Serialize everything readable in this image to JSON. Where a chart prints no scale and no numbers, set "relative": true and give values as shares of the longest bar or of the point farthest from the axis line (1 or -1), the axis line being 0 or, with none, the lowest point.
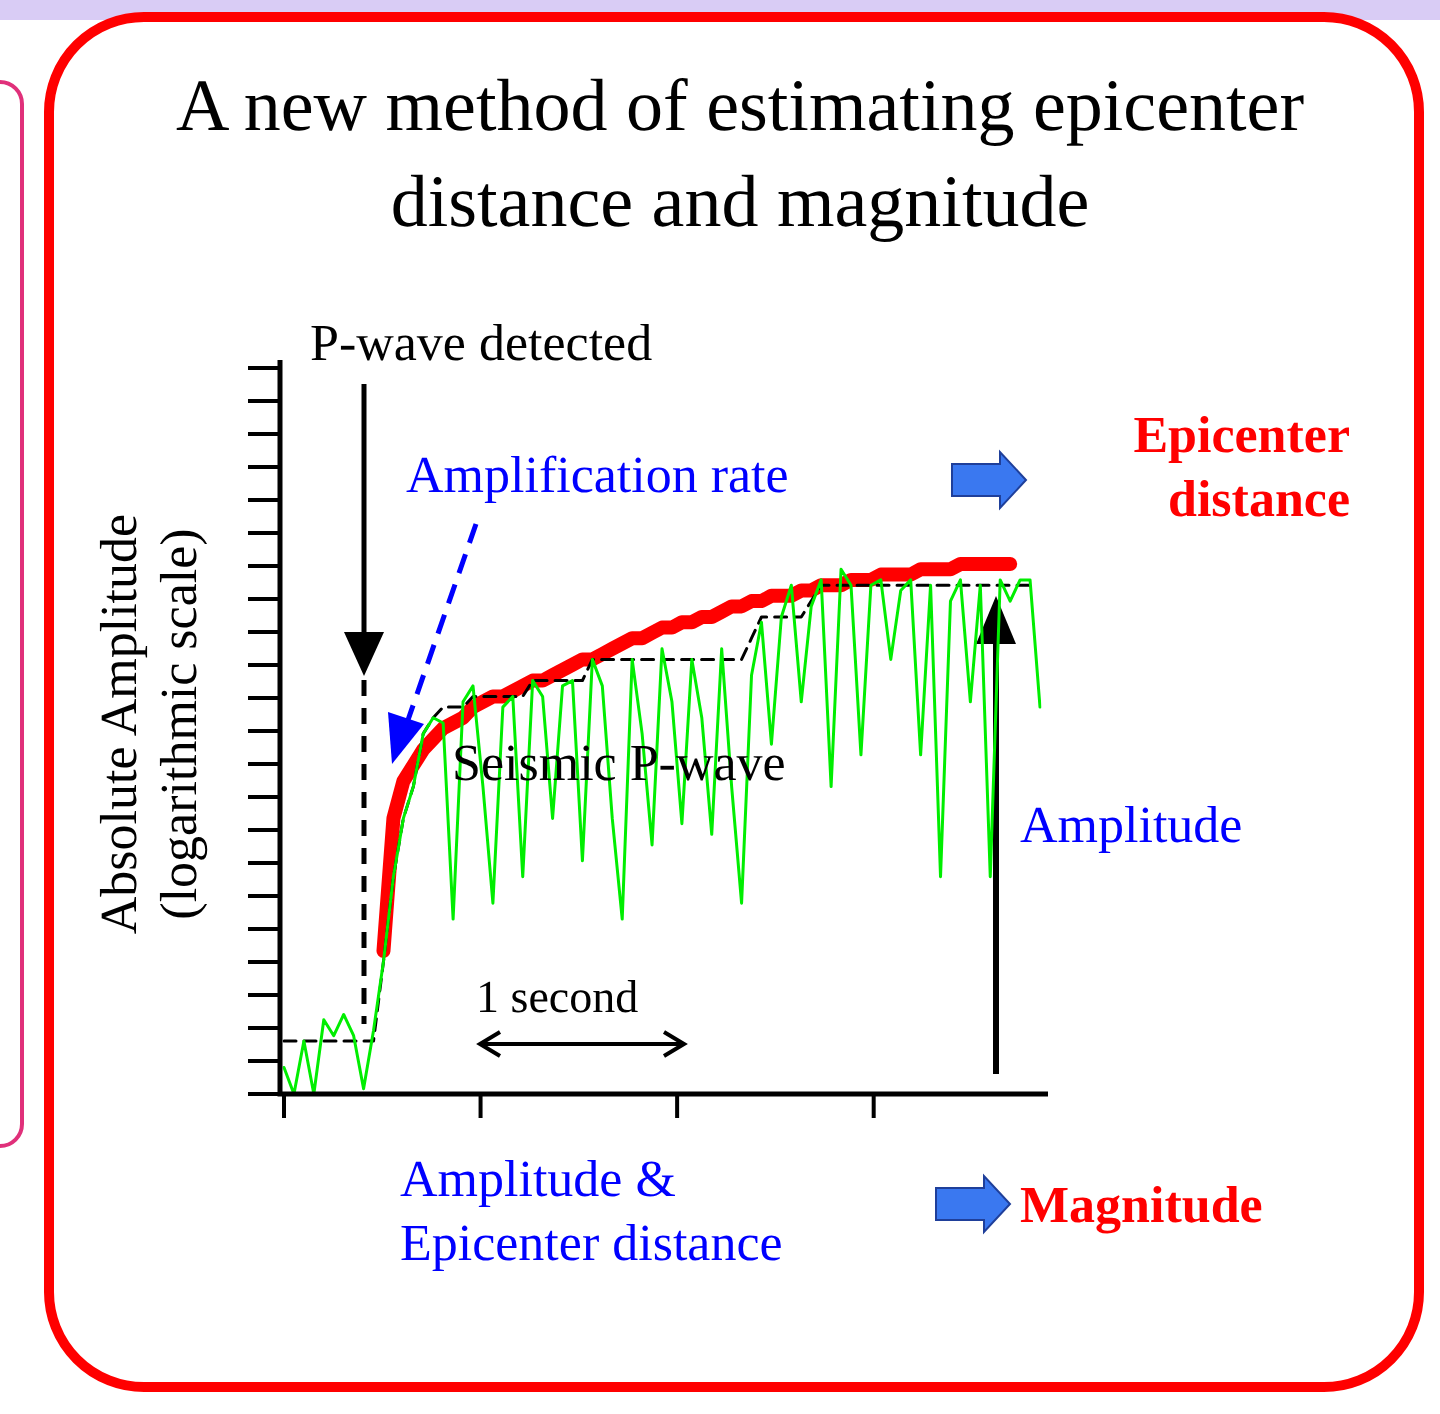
{
  "chart_data": {
    "type": "line",
    "relative": true,
    "title": "A new method of estimating epicenter distance and magnitude",
    "ylabel": "Absolute Amplitude (logarithmic scale)",
    "legend": false,
    "marker": "none",
    "categories": [
      null,
      null,
      null,
      null,
      null,
      null,
      null,
      null,
      null,
      null,
      null,
      null,
      null,
      null,
      null,
      null,
      null,
      null,
      null,
      null,
      null,
      null,
      null,
      null,
      null,
      null,
      null,
      null,
      null,
      null,
      null,
      null,
      null,
      null,
      null,
      null,
      null,
      null,
      null,
      null,
      null,
      null,
      null,
      null,
      null,
      null,
      null,
      null,
      null,
      null,
      null,
      null,
      null,
      null,
      null,
      null,
      null,
      null,
      null,
      null,
      null,
      null,
      null,
      null,
      null,
      null,
      null,
      null,
      null,
      null,
      null,
      null,
      null,
      null,
      null,
      null,
      null
    ],
    "series": [
      {
        "color": "#00ee00",
        "line_style": "solid",
        "values": [
          0.05,
          0,
          0.1,
          0,
          0.14,
          0.11,
          0.15,
          0.11,
          0.01,
          0.12,
          0.25,
          0.41,
          0.52,
          0.58,
          0.68,
          0.71,
          0.7,
          0.33,
          0.74,
          0.77,
          0.58,
          0.36,
          0.73,
          0.75,
          0.41,
          0.78,
          0.75,
          0.52,
          0.77,
          0.78,
          0.44,
          0.82,
          0.77,
          0.52,
          0.33,
          0.82,
          0.68,
          0.47,
          0.84,
          0.74,
          0.51,
          0.82,
          0.71,
          0.49,
          0.84,
          0.58,
          0.36,
          0.79,
          0.89,
          0.66,
          0.9,
          0.96,
          0.74,
          0.92,
          0.97,
          0.58,
          0.99,
          0.96,
          0.64,
          0.96,
          0.97,
          0.82,
          0.95,
          0.97,
          0.64,
          0.96,
          0.41,
          0.93,
          0.97,
          0.74,
          0.96,
          0.41,
          0.97,
          0.93,
          0.97,
          0.97,
          0.73
        ]
      },
      {
        "color": "#000000",
        "line_style": "dashed",
        "values": [
          0.1,
          0.1,
          0.1,
          0.1,
          0.1,
          0.1,
          0.1,
          0.1,
          0.1,
          0.1,
          0.25,
          0.41,
          0.52,
          0.58,
          0.68,
          0.71,
          0.73,
          0.73,
          0.73,
          0.75,
          0.75,
          0.75,
          0.75,
          0.75,
          0.75,
          0.78,
          0.78,
          0.78,
          0.78,
          0.78,
          0.78,
          0.82,
          0.82,
          0.82,
          0.82,
          0.82,
          0.82,
          0.82,
          0.82,
          0.82,
          0.82,
          0.82,
          0.82,
          0.82,
          0.82,
          0.82,
          0.82,
          0.86,
          0.9,
          0.9,
          0.9,
          0.9,
          0.9,
          0.93,
          0.96,
          0.96,
          0.96,
          0.96,
          0.96,
          0.96,
          0.96,
          0.96,
          0.96,
          0.96,
          0.96,
          0.96,
          0.96,
          0.96,
          0.96,
          0.96,
          0.96,
          0.96,
          0.96,
          0.96,
          0.96,
          0.96,
          null
        ]
      },
      {
        "color": "#ff0000",
        "line_style": "solid",
        "values": [
          null,
          null,
          null,
          null,
          null,
          null,
          null,
          null,
          null,
          null,
          0.27,
          0.52,
          0.59,
          0.62,
          0.65,
          0.67,
          0.69,
          0.7,
          0.71,
          0.73,
          0.74,
          0.75,
          0.75,
          0.76,
          0.77,
          0.78,
          0.78,
          0.79,
          0.8,
          0.81,
          0.82,
          0.82,
          0.83,
          0.84,
          0.85,
          0.86,
          0.86,
          0.87,
          0.88,
          0.88,
          0.89,
          0.89,
          0.9,
          0.9,
          0.91,
          0.92,
          0.92,
          0.93,
          0.93,
          0.94,
          0.94,
          0.94,
          0.95,
          0.95,
          0.96,
          0.96,
          0.96,
          0.97,
          0.97,
          0.97,
          0.98,
          0.98,
          0.98,
          0.98,
          0.99,
          0.99,
          0.99,
          0.99,
          1,
          1,
          1,
          1,
          1,
          1,
          null,
          null,
          null
        ]
      }
    ],
    "annotations": [
      "P-wave detected",
      "Amplification rate",
      "Epicenter distance",
      "Seismic P-wave",
      "Amplitude",
      "1 second",
      "Amplitude & Epicenter distance",
      "Magnitude"
    ]
  }
}
